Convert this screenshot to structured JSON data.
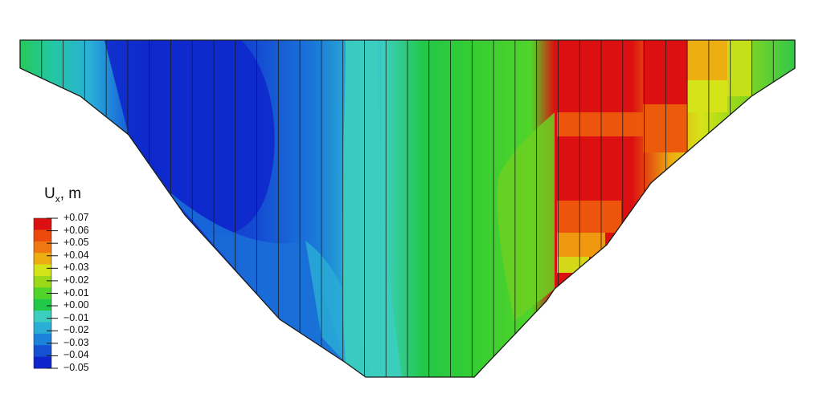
{
  "legend": {
    "symbol": "U",
    "subscript": "x",
    "unit": ", m",
    "labels": [
      "+0.07",
      "+0.06",
      "+0.05",
      "+0.04",
      "+0.03",
      "+0.02",
      "+0.01",
      "+0.00",
      "−0.01",
      "−0.02",
      "−0.03",
      "−0.04",
      "−0.05"
    ],
    "colors": [
      "#dc1010",
      "#ec4a0c",
      "#f07810",
      "#ecae10",
      "#d4e418",
      "#9ad818",
      "#50d42a",
      "#22c848",
      "#3ccebe",
      "#2aaed6",
      "#1a82d8",
      "#1452d2",
      "#0e24cc"
    ]
  },
  "field": {
    "description": "horizontal displacement contour on dam sections",
    "section_count": 36
  }
}
